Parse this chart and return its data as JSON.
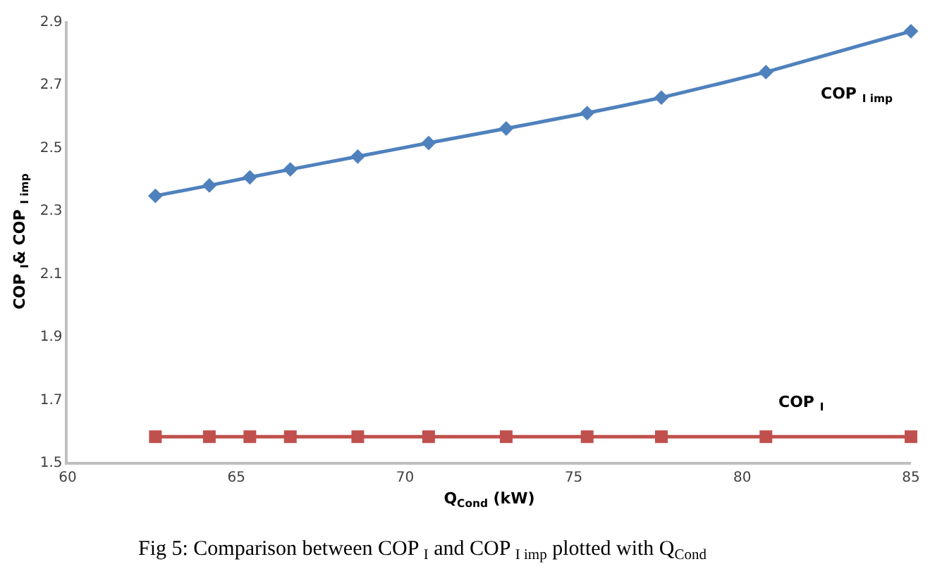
{
  "chart_data": {
    "type": "line",
    "xlabel": "Q$_{Cond}$ (kW)",
    "ylabel": "COP $_{I}$& COP $_{I imp}$",
    "x": [
      62.6,
      64.2,
      65.4,
      66.6,
      68.6,
      70.7,
      73.0,
      75.4,
      77.6,
      80.7,
      85.0
    ],
    "series": [
      {
        "name": "COP $_{I imp}$",
        "color": "#4f81bd",
        "marker": "diamond",
        "values": [
          2.345,
          2.378,
          2.404,
          2.429,
          2.47,
          2.513,
          2.559,
          2.608,
          2.657,
          2.738,
          2.868
        ]
      },
      {
        "name": "COP $_{I}$",
        "color": "#c0504d",
        "marker": "square",
        "values": [
          1.58,
          1.58,
          1.58,
          1.58,
          1.58,
          1.58,
          1.58,
          1.58,
          1.58,
          1.58,
          1.58
        ]
      }
    ],
    "xlim": [
      60,
      85
    ],
    "xticks": [
      60,
      65,
      70,
      75,
      80,
      85
    ],
    "ylim": [
      1.5,
      2.9
    ],
    "yticks": [
      {
        "value": 1.5,
        "label": "1.5"
      },
      {
        "value": 1.7,
        "label": "1.7"
      },
      {
        "value": 1.9,
        "label": "1.9"
      },
      {
        "value": 2.1,
        "label": "2.1"
      },
      {
        "value": 2.3,
        "label": "2.3"
      },
      {
        "value": 2.5,
        "label": "2.5"
      },
      {
        "value": 2.7,
        "label": "2.7"
      },
      {
        "value": 2.9,
        "label": "2.9"
      }
    ],
    "legend": false,
    "line_style": "solid",
    "annotations": [
      "Fig 5: Comparison between COP $_{I}$ and COP $_{I imp}$ plotted with Q$_{Cond}$"
    ]
  }
}
